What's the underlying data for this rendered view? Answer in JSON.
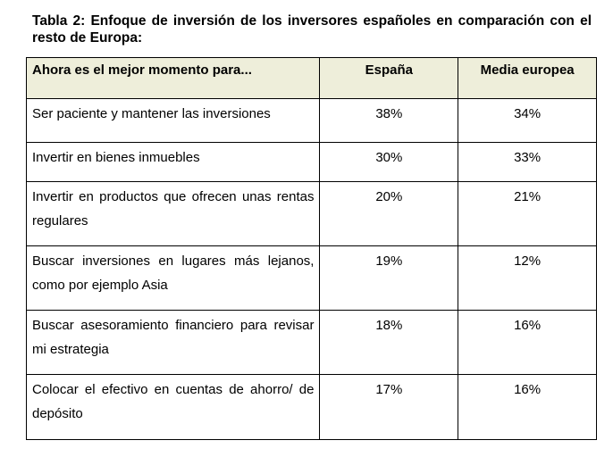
{
  "caption": "Tabla 2: Enfoque de inversión de los inversores españoles en comparación con el resto de Europa:",
  "table": {
    "headers": [
      "Ahora es el mejor momento para...",
      "España",
      "Media europea"
    ],
    "rows": [
      [
        "Ser paciente y mantener las inversiones",
        "38%",
        "34%"
      ],
      [
        "Invertir en bienes inmuebles",
        "30%",
        "33%"
      ],
      [
        "Invertir en productos que ofrecen unas rentas regulares",
        "20%",
        "21%"
      ],
      [
        "Buscar inversiones en lugares más lejanos, como por ejemplo Asia",
        "19%",
        "12%"
      ],
      [
        "Buscar asesoramiento financiero para revisar mi estrategia",
        "18%",
        "16%"
      ],
      [
        "Colocar el efectivo en cuentas de ahorro/ de depósito",
        "17%",
        "16%"
      ]
    ],
    "header_background": "#eeeeda"
  }
}
